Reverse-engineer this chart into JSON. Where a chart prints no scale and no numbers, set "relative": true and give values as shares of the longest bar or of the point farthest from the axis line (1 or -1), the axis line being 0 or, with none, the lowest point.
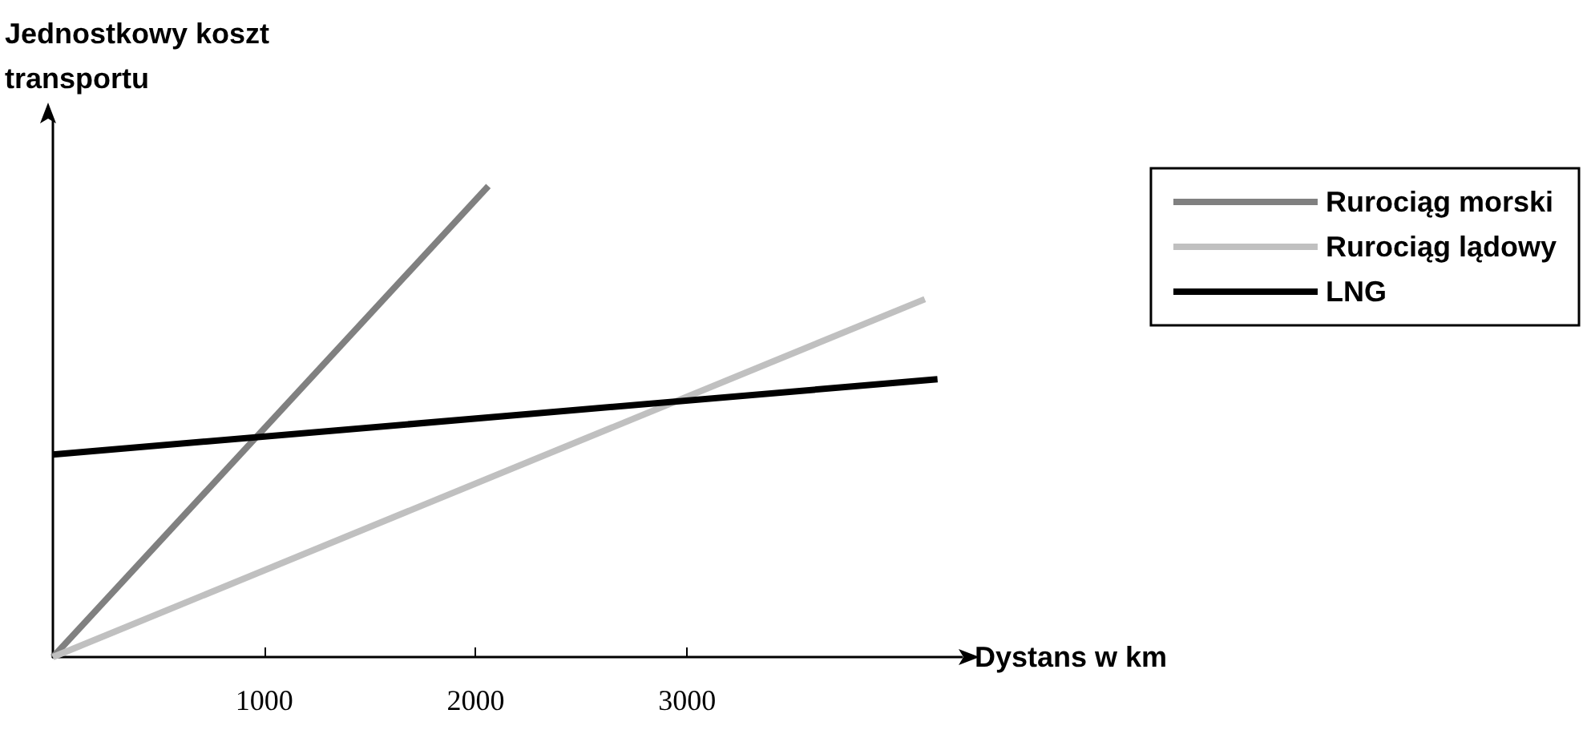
{
  "chart_data": {
    "type": "line",
    "relative": true,
    "xlabel": "Dystans w km",
    "ylabel": "Jednostkowy koszt\ntransportu",
    "xlim": [
      0,
      4300
    ],
    "xticks": [
      1000,
      2000,
      3000
    ],
    "tick_labels": "x",
    "grid": false,
    "legend": "top right",
    "marker": "none",
    "line_style": "solid",
    "series": [
      {
        "name": "Rurociąg morski",
        "color": "#808080",
        "x": [
          0,
          2060
        ],
        "values": [
          0,
          1
        ]
      },
      {
        "name": "Rurociąg lądowy",
        "color": "#c0c0c0",
        "x": [
          0,
          4125
        ],
        "values": [
          0,
          0.76
        ]
      },
      {
        "name": "LNG",
        "color": "#000000",
        "x": [
          0,
          4185
        ],
        "values": [
          0.43,
          0.59
        ]
      }
    ]
  }
}
